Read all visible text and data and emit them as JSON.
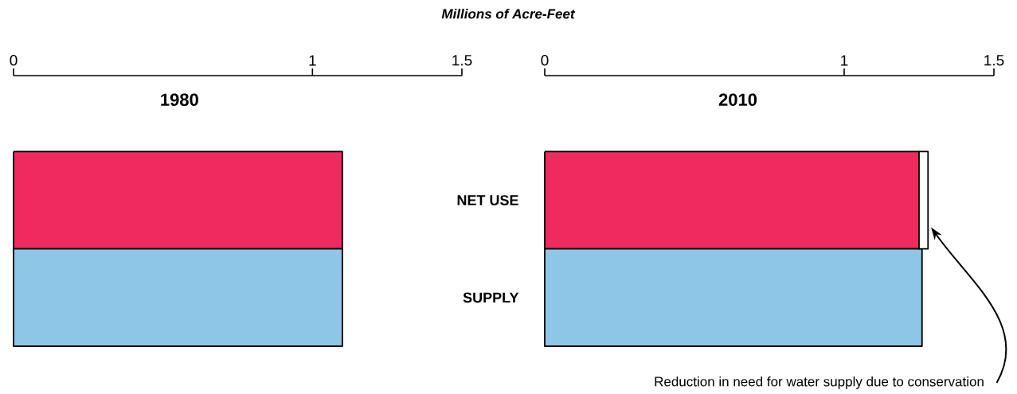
{
  "chart_data": [
    {
      "type": "bar",
      "orientation": "horizontal",
      "title": "1980",
      "xlabel": "Millions of Acre-Feet",
      "categories": [
        null,
        null
      ],
      "values": [
        1.1,
        1.1
      ],
      "colors": [
        "#ee2a5e",
        "#8ec6e8"
      ],
      "xlim": [
        0,
        1.5
      ],
      "xticks": [
        0,
        1,
        1.5
      ],
      "tick_labels": "x"
    },
    {
      "type": "bar",
      "orientation": "horizontal",
      "stacked": true,
      "title": "2010",
      "categories": [
        "NET USE",
        "SUPPLY"
      ],
      "series": [
        {
          "colors": [
            "#ee2a5e",
            "#8ec6e8"
          ],
          "values": [
            1.25,
            1.26
          ]
        },
        {
          "color": "#ffffff",
          "values": [
            0.03,
            null
          ]
        }
      ],
      "xlim": [
        0,
        1.5
      ],
      "xticks": [
        0,
        1,
        1.5
      ],
      "annotations": [
        "Reduction in need for water supply due to conservation"
      ]
    }
  ]
}
